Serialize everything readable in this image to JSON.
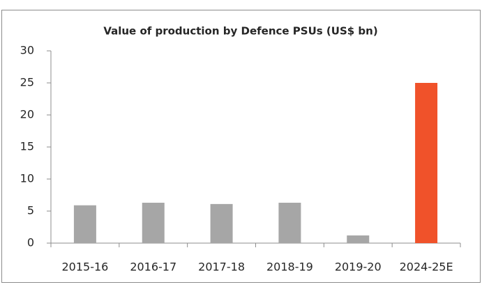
{
  "chart_data": {
    "type": "bar",
    "title": "Value of production  by Defence PSUs (US$ bn)",
    "categories": [
      "2015-16",
      "2016-17",
      "2017-18",
      "2018-19",
      "2019-20",
      "2024-25E"
    ],
    "values": [
      5.9,
      6.3,
      6.1,
      6.3,
      1.2,
      25
    ],
    "colors": [
      "#a6a6a6",
      "#a6a6a6",
      "#a6a6a6",
      "#a6a6a6",
      "#a6a6a6",
      "#f0522a"
    ],
    "ylim": [
      0,
      30
    ],
    "yticks": [
      0,
      5,
      10,
      15,
      20,
      25,
      30
    ],
    "grid": false
  }
}
